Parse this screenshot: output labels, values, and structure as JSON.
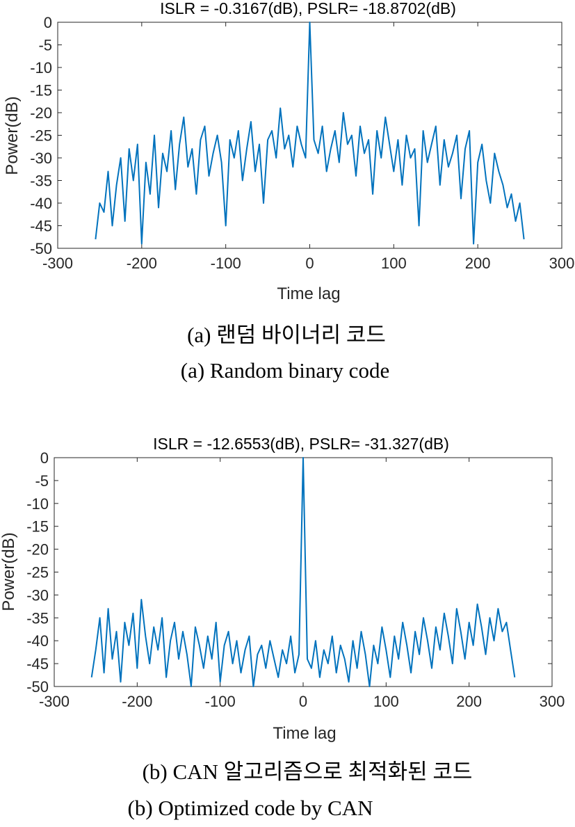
{
  "panels": [
    {
      "caption_ko": "(a) 랜덤 바이너리 코드",
      "caption_en": "(a) Random binary code"
    },
    {
      "caption_ko": "(b) CAN 알고리즘으로 최적화된 코드",
      "caption_en": "(b) Optimized code by CAN"
    }
  ],
  "chart_data": [
    {
      "type": "line",
      "title": "ISLR =   -0.3167(dB),  PSLR=  -18.8702(dB)",
      "xlabel": "Time lag",
      "ylabel": "Power(dB)",
      "xlim": [
        -300,
        300
      ],
      "ylim": [
        -50,
        0
      ],
      "xticks": [
        "-300",
        "-200",
        "-100",
        "0",
        "100",
        "200",
        "300"
      ],
      "yticks": [
        "0",
        "-5",
        "-10",
        "-15",
        "-20",
        "-25",
        "-30",
        "-35",
        "-40",
        "-45",
        "-50"
      ],
      "grid": false,
      "color": "#0072bd",
      "x_range": [
        -255,
        255
      ],
      "peak": {
        "x": 0,
        "y": 0
      },
      "sidelobe_note": "noisy sidelobes mostly between -45 and -22 dB, envelope falling toward edges",
      "series": [
        {
          "x": [
            -255,
            -250,
            -245,
            -240,
            -235,
            -230,
            -225,
            -220,
            -215,
            -210,
            -205,
            -200,
            -195,
            -190,
            -185,
            -180,
            -175,
            -170,
            -165,
            -160,
            -155,
            -150,
            -145,
            -140,
            -135,
            -130,
            -125,
            -120,
            -115,
            -110,
            -105,
            -100,
            -95,
            -90,
            -85,
            -80,
            -75,
            -70,
            -65,
            -60,
            -55,
            -50,
            -45,
            -40,
            -35,
            -30,
            -25,
            -20,
            -15,
            -10,
            -5,
            0,
            5,
            10,
            15,
            20,
            25,
            30,
            35,
            40,
            45,
            50,
            55,
            60,
            65,
            70,
            75,
            80,
            85,
            90,
            95,
            100,
            105,
            110,
            115,
            120,
            125,
            130,
            135,
            140,
            145,
            150,
            155,
            160,
            165,
            170,
            175,
            180,
            185,
            190,
            195,
            200,
            205,
            210,
            215,
            220,
            225,
            230,
            235,
            240,
            245,
            250,
            255
          ],
          "values": [
            -48,
            -40,
            -42,
            -33,
            -45,
            -36,
            -30,
            -44,
            -28,
            -35,
            -27,
            -49,
            -31,
            -38,
            -25,
            -41,
            -29,
            -33,
            -24,
            -37,
            -27,
            -21,
            -32,
            -28,
            -38,
            -26,
            -23,
            -34,
            -29,
            -25,
            -31,
            -45,
            -26,
            -30,
            -24,
            -35,
            -28,
            -22,
            -33,
            -27,
            -40,
            -26,
            -24,
            -30,
            -19,
            -28,
            -25,
            -32,
            -23,
            -27,
            -30,
            0,
            -26,
            -29,
            -23,
            -33,
            -28,
            -24,
            -31,
            -20,
            -27,
            -25,
            -34,
            -23,
            -29,
            -26,
            -38,
            -24,
            -30,
            -21,
            -27,
            -33,
            -26,
            -36,
            -25,
            -30,
            -28,
            -45,
            -24,
            -31,
            -27,
            -23,
            -36,
            -26,
            -32,
            -29,
            -25,
            -39,
            -28,
            -24,
            -49,
            -31,
            -27,
            -35,
            -40,
            -29,
            -33,
            -36,
            -41,
            -38,
            -44,
            -40,
            -48
          ]
        }
      ]
    },
    {
      "type": "line",
      "title": "ISLR =   -12.6553(dB), PSLR=   -31.327(dB)",
      "xlabel": "Time lag",
      "ylabel": "Power(dB)",
      "xlim": [
        -300,
        300
      ],
      "ylim": [
        -50,
        0
      ],
      "xticks": [
        "-300",
        "-200",
        "-100",
        "0",
        "100",
        "200",
        "300"
      ],
      "yticks": [
        "0",
        "-5",
        "-10",
        "-15",
        "-20",
        "-25",
        "-30",
        "-35",
        "-40",
        "-45",
        "-50"
      ],
      "grid": false,
      "color": "#0072bd",
      "x_range": [
        -255,
        255
      ],
      "peak": {
        "x": 0,
        "y": 0
      },
      "sidelobe_note": "sidelobes mostly between -50 and -31 dB, higher near the edges, lower in the middle",
      "series": [
        {
          "x": [
            -255,
            -250,
            -245,
            -240,
            -235,
            -230,
            -225,
            -220,
            -215,
            -210,
            -205,
            -200,
            -195,
            -190,
            -185,
            -180,
            -175,
            -170,
            -165,
            -160,
            -155,
            -150,
            -145,
            -140,
            -135,
            -130,
            -125,
            -120,
            -115,
            -110,
            -105,
            -100,
            -95,
            -90,
            -85,
            -80,
            -75,
            -70,
            -65,
            -60,
            -55,
            -50,
            -45,
            -40,
            -35,
            -30,
            -25,
            -20,
            -15,
            -10,
            -5,
            0,
            5,
            10,
            15,
            20,
            25,
            30,
            35,
            40,
            45,
            50,
            55,
            60,
            65,
            70,
            75,
            80,
            85,
            90,
            95,
            100,
            105,
            110,
            115,
            120,
            125,
            130,
            135,
            140,
            145,
            150,
            155,
            160,
            165,
            170,
            175,
            180,
            185,
            190,
            195,
            200,
            205,
            210,
            215,
            220,
            225,
            230,
            235,
            240,
            245,
            250,
            255
          ],
          "values": [
            -48,
            -42,
            -35,
            -47,
            -33,
            -44,
            -38,
            -49,
            -36,
            -41,
            -34,
            -46,
            -31,
            -39,
            -45,
            -37,
            -42,
            -35,
            -48,
            -40,
            -36,
            -44,
            -38,
            -43,
            -50,
            -37,
            -41,
            -46,
            -39,
            -44,
            -36,
            -49,
            -41,
            -38,
            -45,
            -40,
            -47,
            -42,
            -39,
            -50,
            -43,
            -41,
            -46,
            -40,
            -44,
            -48,
            -42,
            -45,
            -39,
            -47,
            -43,
            0,
            -44,
            -46,
            -40,
            -48,
            -42,
            -45,
            -39,
            -47,
            -41,
            -44,
            -49,
            -40,
            -46,
            -38,
            -43,
            -50,
            -41,
            -45,
            -37,
            -42,
            -48,
            -39,
            -44,
            -36,
            -41,
            -47,
            -38,
            -43,
            -35,
            -40,
            -46,
            -37,
            -42,
            -34,
            -39,
            -45,
            -33,
            -38,
            -44,
            -36,
            -41,
            -32,
            -37,
            -43,
            -35,
            -40,
            -33,
            -38,
            -36,
            -42,
            -48
          ]
        }
      ]
    }
  ]
}
